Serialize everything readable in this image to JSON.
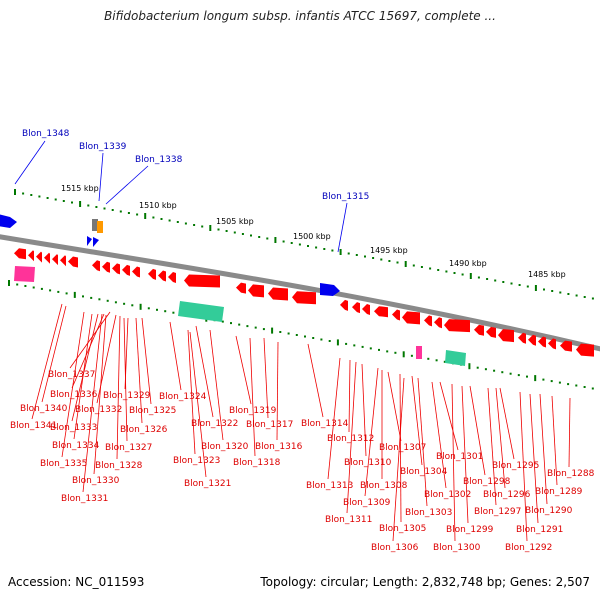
{
  "title": "Bifidobacterium longum subsp. infantis ATCC 15697, complete ...",
  "footer": {
    "accession": "Accession: NC_011593",
    "summary": "Topology: circular; Length: 2,832,748 bp; Genes: 2,507"
  },
  "colors": {
    "gene_reverse": "#ff0000",
    "gene_forward": "#0000ee",
    "rrna": "#33cc99",
    "trna": "#ff3399",
    "backbone": "#888888",
    "tick": "#007700"
  },
  "kbp_labels": [
    "1515 kbp",
    "1510 kbp",
    "1505 kbp",
    "1500 kbp",
    "1495 kbp",
    "1490 kbp",
    "1485 kbp"
  ],
  "blue_labels": [
    "Blon_1348",
    "Blon_1339",
    "Blon_1338",
    "Blon_1315"
  ],
  "red_labels": [
    "Blon_1337",
    "Blon_1336",
    "Blon_1340",
    "Blon_1341",
    "Blon_1333",
    "Blon_1332",
    "Blon_1329",
    "Blon_1325",
    "Blon_1324",
    "Blon_1326",
    "Blon_1334",
    "Blon_1327",
    "Blon_1335",
    "Blon_1328",
    "Blon_1330",
    "Blon_1331",
    "Blon_1322",
    "Blon_1320",
    "Blon_1323",
    "Blon_1321",
    "Blon_1319",
    "Blon_1317",
    "Blon_1316",
    "Blon_1318",
    "Blon_1314",
    "Blon_1312",
    "Blon_1310",
    "Blon_1313",
    "Blon_1309",
    "Blon_1311",
    "Blon_1308",
    "Blon_1307",
    "Blon_1304",
    "Blon_1305",
    "Blon_1306",
    "Blon_1303",
    "Blon_1302",
    "Blon_1301",
    "Blon_1300",
    "Blon_1299",
    "Blon_1298",
    "Blon_1297",
    "Blon_1296",
    "Blon_1295",
    "Blon_1292",
    "Blon_1291",
    "Blon_1290",
    "Blon_1289",
    "Blon_1288"
  ]
}
